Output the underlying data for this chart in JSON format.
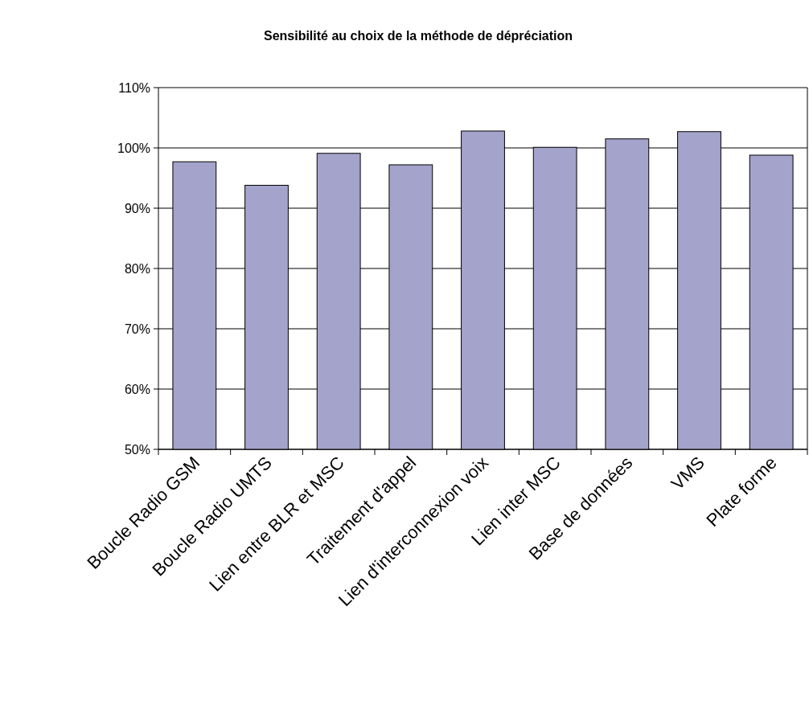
{
  "chart_data": {
    "type": "bar",
    "title": "Sensibilité au choix de la méthode de dépréciation",
    "categories": [
      "Boucle Radio GSM",
      "Boucle Radio UMTS",
      "Lien entre BLR et MSC",
      "Traitement d'appel",
      "Lien d'interconnexion voix",
      "Lien inter MSC",
      "Base de données",
      "VMS",
      "Plate forme"
    ],
    "values": [
      97.7,
      93.8,
      99.1,
      97.2,
      102.8,
      100.1,
      101.5,
      102.7,
      98.8
    ],
    "color": "#a3a3cc",
    "ylim": [
      50,
      110
    ],
    "yticks": [
      {
        "value": 50,
        "label": "50%"
      },
      {
        "value": 60,
        "label": "60%"
      },
      {
        "value": 70,
        "label": "70%"
      },
      {
        "value": 80,
        "label": "80%"
      },
      {
        "value": 90,
        "label": "90%"
      },
      {
        "value": 100,
        "label": "100%"
      },
      {
        "value": 110,
        "label": "110%"
      }
    ],
    "grid": "y"
  }
}
